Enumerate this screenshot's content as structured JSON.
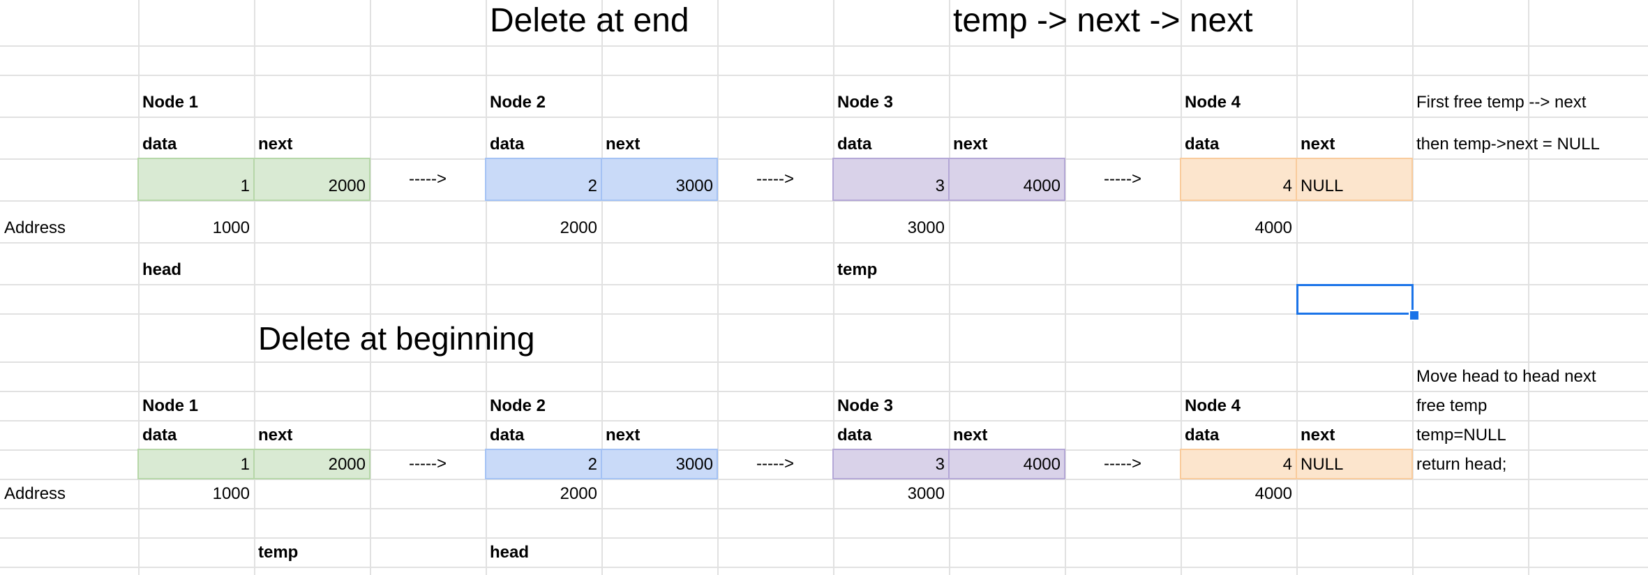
{
  "titles": {
    "delete_at_end": "Delete at end",
    "temp_next_next": "temp -> next -> next",
    "delete_at_beginning": "Delete at beginning"
  },
  "section_end": {
    "nodes": [
      {
        "label": "Node 1",
        "data_header": "data",
        "next_header": "next",
        "data": "1",
        "next": "2000",
        "address": "1000"
      },
      {
        "label": "Node 2",
        "data_header": "data",
        "next_header": "next",
        "data": "2",
        "next": "3000",
        "address": "2000"
      },
      {
        "label": "Node 3",
        "data_header": "data",
        "next_header": "next",
        "data": "3",
        "next": "4000",
        "address": "3000"
      },
      {
        "label": "Node 4",
        "data_header": "data",
        "next_header": "next",
        "data": "4",
        "next": "NULL",
        "address": "4000"
      }
    ],
    "arrows": [
      "----->",
      "----->",
      "----->"
    ],
    "address_label": "Address",
    "pointer_head": "head",
    "pointer_temp": "temp",
    "notes": [
      "First free temp --> next",
      "then temp->next = NULL"
    ]
  },
  "section_begin": {
    "nodes": [
      {
        "label": "Node 1",
        "data_header": "data",
        "next_header": "next",
        "data": "1",
        "next": "2000",
        "address": "1000"
      },
      {
        "label": "Node 2",
        "data_header": "data",
        "next_header": "next",
        "data": "2",
        "next": "3000",
        "address": "2000"
      },
      {
        "label": "Node 3",
        "data_header": "data",
        "next_header": "next",
        "data": "3",
        "next": "4000",
        "address": "3000"
      },
      {
        "label": "Node 4",
        "data_header": "data",
        "next_header": "next",
        "data": "4",
        "next": "NULL",
        "address": "4000"
      }
    ],
    "arrows": [
      "----->",
      "----->",
      "----->"
    ],
    "address_label": "Address",
    "pointer_temp": "temp",
    "pointer_head": "head",
    "notes": [
      "Move head to head next",
      "free temp",
      "temp=NULL",
      "return head;"
    ]
  },
  "colors": {
    "node1": "#d9ead3",
    "node2": "#c9daf8",
    "node3": "#d9d2e9",
    "node4": "#fce5cd",
    "selection": "#1a73e8",
    "gridline": "#e1e1e1"
  }
}
